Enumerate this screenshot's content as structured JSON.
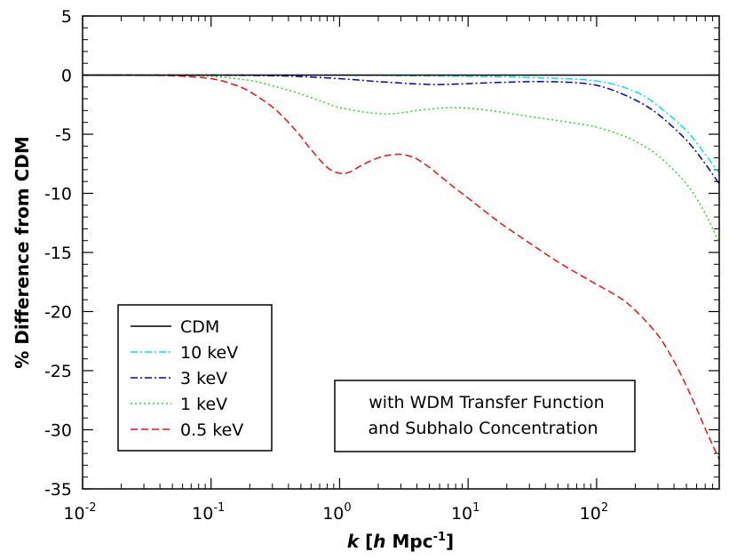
{
  "chart_data": {
    "type": "line",
    "title": "",
    "xlabel": {
      "italic": "k",
      "open": " [",
      "h": "h",
      "unit": " Mpc",
      "sup": "-1",
      "close": "]"
    },
    "ylabel": "% Difference from CDM",
    "xscale": "log",
    "xlim": [
      0.01,
      900
    ],
    "ylim": [
      -35,
      5
    ],
    "x_ticks": [
      {
        "value": 0.01,
        "base": "10",
        "exp": "-2"
      },
      {
        "value": 0.1,
        "base": "10",
        "exp": "-1"
      },
      {
        "value": 1,
        "base": "10",
        "exp": "0"
      },
      {
        "value": 10,
        "base": "10",
        "exp": "1"
      },
      {
        "value": 100,
        "base": "10",
        "exp": "2"
      }
    ],
    "y_ticks": [
      5,
      0,
      -5,
      -10,
      -15,
      -20,
      -25,
      -30,
      -35
    ],
    "grid": false,
    "legend_position": "lower-left",
    "annotation": [
      "with WDM Transfer Function",
      "and Subhalo Concentration"
    ],
    "series": [
      {
        "name": "CDM",
        "color": "#000000",
        "dash": "solid",
        "x": [
          0.01,
          900
        ],
        "y": [
          0,
          0
        ]
      },
      {
        "name": "10 keV",
        "color": "#00e5e5",
        "dash": "dashdot",
        "x": [
          0.01,
          0.1,
          1,
          3,
          10,
          30,
          100,
          200,
          300,
          500,
          700,
          900
        ],
        "y": [
          0,
          0,
          0,
          -0.05,
          -0.1,
          -0.2,
          -0.5,
          -1.4,
          -2.6,
          -4.7,
          -6.7,
          -8.3
        ]
      },
      {
        "name": "3 keV",
        "color": "#0000cc",
        "dash": "dashdot",
        "x": [
          0.01,
          0.1,
          0.3,
          0.5,
          1,
          2,
          4,
          6,
          10,
          20,
          40,
          80,
          120,
          200,
          300,
          500,
          700,
          900
        ],
        "y": [
          0,
          0,
          -0.05,
          -0.12,
          -0.3,
          -0.55,
          -0.75,
          -0.8,
          -0.72,
          -0.6,
          -0.55,
          -0.7,
          -1.1,
          -2.1,
          -3.3,
          -5.5,
          -7.5,
          -9.2
        ]
      },
      {
        "name": "1 keV",
        "color": "#22dd22",
        "dash": "dotted",
        "x": [
          0.01,
          0.05,
          0.1,
          0.2,
          0.3,
          0.5,
          0.8,
          1,
          1.5,
          2,
          2.5,
          3,
          4,
          6,
          8,
          10,
          15,
          20,
          30,
          50,
          80,
          100,
          150,
          200,
          300,
          500,
          700,
          900
        ],
        "y": [
          0,
          0,
          -0.1,
          -0.45,
          -0.9,
          -1.6,
          -2.4,
          -2.75,
          -3.1,
          -3.25,
          -3.28,
          -3.2,
          -3.0,
          -2.8,
          -2.75,
          -2.8,
          -3.0,
          -3.2,
          -3.5,
          -3.85,
          -4.2,
          -4.4,
          -5.0,
          -5.6,
          -6.8,
          -9.2,
          -11.7,
          -14.2
        ]
      },
      {
        "name": "0.5 keV",
        "color": "#ee1111",
        "dash": "dashed",
        "x": [
          0.01,
          0.02,
          0.05,
          0.1,
          0.15,
          0.2,
          0.3,
          0.4,
          0.5,
          0.6,
          0.8,
          1,
          1.2,
          1.5,
          2,
          2.5,
          3,
          3.5,
          4,
          5,
          6,
          8,
          10,
          15,
          20,
          30,
          50,
          80,
          100,
          150,
          200,
          300,
          400,
          500,
          600,
          700,
          800,
          900
        ],
        "y": [
          0,
          0,
          -0.05,
          -0.3,
          -0.8,
          -1.4,
          -2.7,
          -4.0,
          -5.2,
          -6.3,
          -7.8,
          -8.3,
          -8.2,
          -7.6,
          -7.0,
          -6.75,
          -6.7,
          -6.85,
          -7.1,
          -7.8,
          -8.5,
          -9.6,
          -10.4,
          -11.9,
          -12.9,
          -14.2,
          -15.8,
          -17.1,
          -17.7,
          -18.8,
          -19.9,
          -22.0,
          -24.2,
          -26.3,
          -28.2,
          -29.9,
          -31.3,
          -32.5
        ]
      }
    ]
  }
}
